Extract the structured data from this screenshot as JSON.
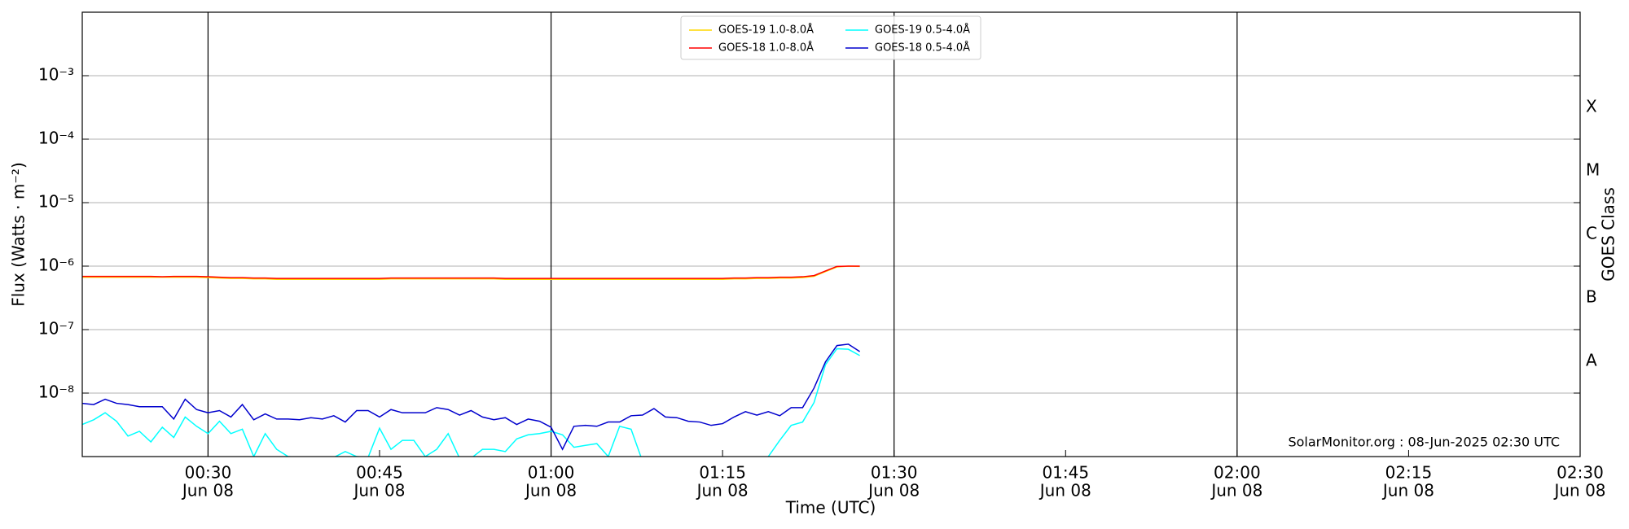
{
  "chart_data": {
    "type": "line",
    "xlabel": "Time (UTC)",
    "ylabel": "Flux (Watts · m⁻²)",
    "y2label": "GOES Class",
    "annotation": "SolarMonitor.org : 08-Jun-2025 02:30 UTC",
    "log_y": true,
    "grid": true,
    "legend": "upper center",
    "xlim": [
      "00:19",
      "02:30"
    ],
    "xticks": [
      {
        "time": "00:30",
        "date": "Jun 08"
      },
      {
        "time": "00:45",
        "date": "Jun 08"
      },
      {
        "time": "01:00",
        "date": "Jun 08"
      },
      {
        "time": "01:15",
        "date": "Jun 08"
      },
      {
        "time": "01:30",
        "date": "Jun 08"
      },
      {
        "time": "01:45",
        "date": "Jun 08"
      },
      {
        "time": "02:00",
        "date": "Jun 08"
      },
      {
        "time": "02:15",
        "date": "Jun 08"
      },
      {
        "time": "02:30",
        "date": "Jun 08"
      }
    ],
    "vlines": [
      "00:30",
      "01:00",
      "01:30",
      "02:00"
    ],
    "ylim": [
      1e-09,
      0.01
    ],
    "yticks": [
      {
        "value": 1e-08,
        "label": "10⁻⁸"
      },
      {
        "value": 1e-07,
        "label": "10⁻⁷"
      },
      {
        "value": 1e-06,
        "label": "10⁻⁶"
      },
      {
        "value": 1e-05,
        "label": "10⁻⁵"
      },
      {
        "value": 0.0001,
        "label": "10⁻⁴"
      },
      {
        "value": 0.001,
        "label": "10⁻³"
      }
    ],
    "classes": [
      {
        "label": "A",
        "range": [
          1e-08,
          1e-07
        ]
      },
      {
        "label": "B",
        "range": [
          1e-07,
          1e-06
        ]
      },
      {
        "label": "C",
        "range": [
          1e-06,
          1e-05
        ]
      },
      {
        "label": "M",
        "range": [
          1e-05,
          0.0001
        ]
      },
      {
        "label": "X",
        "range": [
          0.0001,
          0.001
        ]
      }
    ],
    "x": [
      "00:19",
      "00:20",
      "00:21",
      "00:22",
      "00:23",
      "00:24",
      "00:25",
      "00:26",
      "00:27",
      "00:28",
      "00:29",
      "00:30",
      "00:31",
      "00:32",
      "00:33",
      "00:34",
      "00:35",
      "00:36",
      "00:37",
      "00:38",
      "00:39",
      "00:40",
      "00:41",
      "00:42",
      "00:43",
      "00:44",
      "00:45",
      "00:46",
      "00:47",
      "00:48",
      "00:49",
      "00:50",
      "00:51",
      "00:52",
      "00:53",
      "00:54",
      "00:55",
      "00:56",
      "00:57",
      "00:58",
      "00:59",
      "01:00",
      "01:01",
      "01:02",
      "01:03",
      "01:04",
      "01:05",
      "01:06",
      "01:07",
      "01:08",
      "01:09",
      "01:10",
      "01:11",
      "01:12",
      "01:13",
      "01:14",
      "01:15",
      "01:16",
      "01:17",
      "01:18",
      "01:19",
      "01:20",
      "01:21",
      "01:22",
      "01:23",
      "01:24",
      "01:25",
      "01:26",
      "01:27"
    ],
    "series": [
      {
        "name": "GOES-19 1.0-8.0Å",
        "color": "#ffd700",
        "values": [
          6.7e-07,
          6.7e-07,
          6.7e-07,
          6.7e-07,
          6.7e-07,
          6.7e-07,
          6.7e-07,
          6.7e-07,
          6.7e-07,
          6.7e-07,
          6.7e-07,
          6.6e-07,
          6.5e-07,
          6.4e-07,
          6.4e-07,
          6.3e-07,
          6.3e-07,
          6.2e-07,
          6.2e-07,
          6.2e-07,
          6.2e-07,
          6.2e-07,
          6.2e-07,
          6.2e-07,
          6.2e-07,
          6.2e-07,
          6.2e-07,
          6.3e-07,
          6.3e-07,
          6.3e-07,
          6.3e-07,
          6.3e-07,
          6.3e-07,
          6.3e-07,
          6.3e-07,
          6.3e-07,
          6.3e-07,
          6.2e-07,
          6.2e-07,
          6.2e-07,
          6.2e-07,
          6.2e-07,
          6.2e-07,
          6.2e-07,
          6.2e-07,
          6.2e-07,
          6.2e-07,
          6.2e-07,
          6.2e-07,
          6.2e-07,
          6.2e-07,
          6.2e-07,
          6.2e-07,
          6.2e-07,
          6.2e-07,
          6.2e-07,
          6.2e-07,
          6.3e-07,
          6.3e-07,
          6.4e-07,
          6.4e-07,
          6.5e-07,
          6.5e-07,
          6.6e-07,
          6.9e-07,
          8.2e-07,
          9.7e-07,
          1e-06,
          9.9e-07
        ]
      },
      {
        "name": "GOES-18 1.0-8.0Å",
        "color": "#ff0000",
        "values": [
          6.9e-07,
          6.9e-07,
          6.9e-07,
          6.9e-07,
          6.9e-07,
          6.9e-07,
          6.9e-07,
          6.8e-07,
          6.9e-07,
          6.9e-07,
          6.9e-07,
          6.8e-07,
          6.7e-07,
          6.6e-07,
          6.6e-07,
          6.5e-07,
          6.5e-07,
          6.4e-07,
          6.4e-07,
          6.4e-07,
          6.4e-07,
          6.4e-07,
          6.4e-07,
          6.4e-07,
          6.4e-07,
          6.4e-07,
          6.4e-07,
          6.5e-07,
          6.5e-07,
          6.5e-07,
          6.5e-07,
          6.5e-07,
          6.5e-07,
          6.5e-07,
          6.5e-07,
          6.5e-07,
          6.5e-07,
          6.4e-07,
          6.4e-07,
          6.4e-07,
          6.4e-07,
          6.4e-07,
          6.4e-07,
          6.4e-07,
          6.4e-07,
          6.4e-07,
          6.4e-07,
          6.4e-07,
          6.4e-07,
          6.4e-07,
          6.4e-07,
          6.4e-07,
          6.4e-07,
          6.4e-07,
          6.4e-07,
          6.4e-07,
          6.4e-07,
          6.5e-07,
          6.5e-07,
          6.6e-07,
          6.6e-07,
          6.7e-07,
          6.7e-07,
          6.8e-07,
          7.1e-07,
          8.4e-07,
          9.9e-07,
          1e-06,
          1e-06
        ]
      },
      {
        "name": "GOES-19 0.5-4.0Å",
        "color": "#00ffff",
        "values": [
          3.2e-09,
          3.8e-09,
          4.9e-09,
          3.6e-09,
          2.1e-09,
          2.5e-09,
          1.7e-09,
          2.9e-09,
          2e-09,
          4.2e-09,
          3e-09,
          2.3e-09,
          3.6e-09,
          2.3e-09,
          2.7e-09,
          1e-09,
          2.3e-09,
          1.3e-09,
          1e-09,
          9.7e-10,
          9.7e-10,
          9.7e-10,
          9.7e-10,
          1.2e-09,
          1e-09,
          9.7e-10,
          2.8e-09,
          1.3e-09,
          1.8e-09,
          1.8e-09,
          1e-09,
          1.3e-09,
          2.3e-09,
          9.4e-10,
          9.4e-10,
          1.3e-09,
          1.3e-09,
          1.2e-09,
          1.9e-09,
          2.2e-09,
          2.3e-09,
          2.5e-09,
          2.2e-09,
          1.4e-09,
          1.5e-09,
          1.6e-09,
          1e-09,
          3e-09,
          2.7e-09,
          8.4e-10,
          8.4e-10,
          8.4e-10,
          8.4e-10,
          8.4e-10,
          8.4e-10,
          8.4e-10,
          8.4e-10,
          8.4e-10,
          8.4e-10,
          8.4e-10,
          1e-09,
          1.8e-09,
          3.1e-09,
          3.5e-09,
          7.1e-09,
          2.8e-08,
          5e-08,
          4.9e-08,
          3.9e-08
        ]
      },
      {
        "name": "GOES-18 0.5-4.0Å",
        "color": "#0000cd",
        "values": [
          6.9e-09,
          6.6e-09,
          8e-09,
          6.9e-09,
          6.6e-09,
          6.1e-09,
          6.1e-09,
          6.1e-09,
          3.9e-09,
          8e-09,
          5.5e-09,
          4.9e-09,
          5.3e-09,
          4.2e-09,
          6.6e-09,
          3.8e-09,
          4.7e-09,
          3.9e-09,
          3.9e-09,
          3.8e-09,
          4.1e-09,
          3.9e-09,
          4.4e-09,
          3.5e-09,
          5.3e-09,
          5.3e-09,
          4.2e-09,
          5.5e-09,
          4.9e-09,
          4.9e-09,
          4.9e-09,
          5.9e-09,
          5.5e-09,
          4.5e-09,
          5.3e-09,
          4.2e-09,
          3.8e-09,
          4.1e-09,
          3.2e-09,
          3.9e-09,
          3.6e-09,
          2.9e-09,
          1.3e-09,
          3e-09,
          3.1e-09,
          3e-09,
          3.5e-09,
          3.5e-09,
          4.4e-09,
          4.5e-09,
          5.7e-09,
          4.2e-09,
          4.1e-09,
          3.6e-09,
          3.5e-09,
          3.1e-09,
          3.3e-09,
          4.2e-09,
          5.1e-09,
          4.5e-09,
          5.1e-09,
          4.4e-09,
          5.9e-09,
          5.9e-09,
          1.2e-08,
          3.1e-08,
          5.6e-08,
          5.9e-08,
          4.5e-08
        ]
      }
    ]
  }
}
